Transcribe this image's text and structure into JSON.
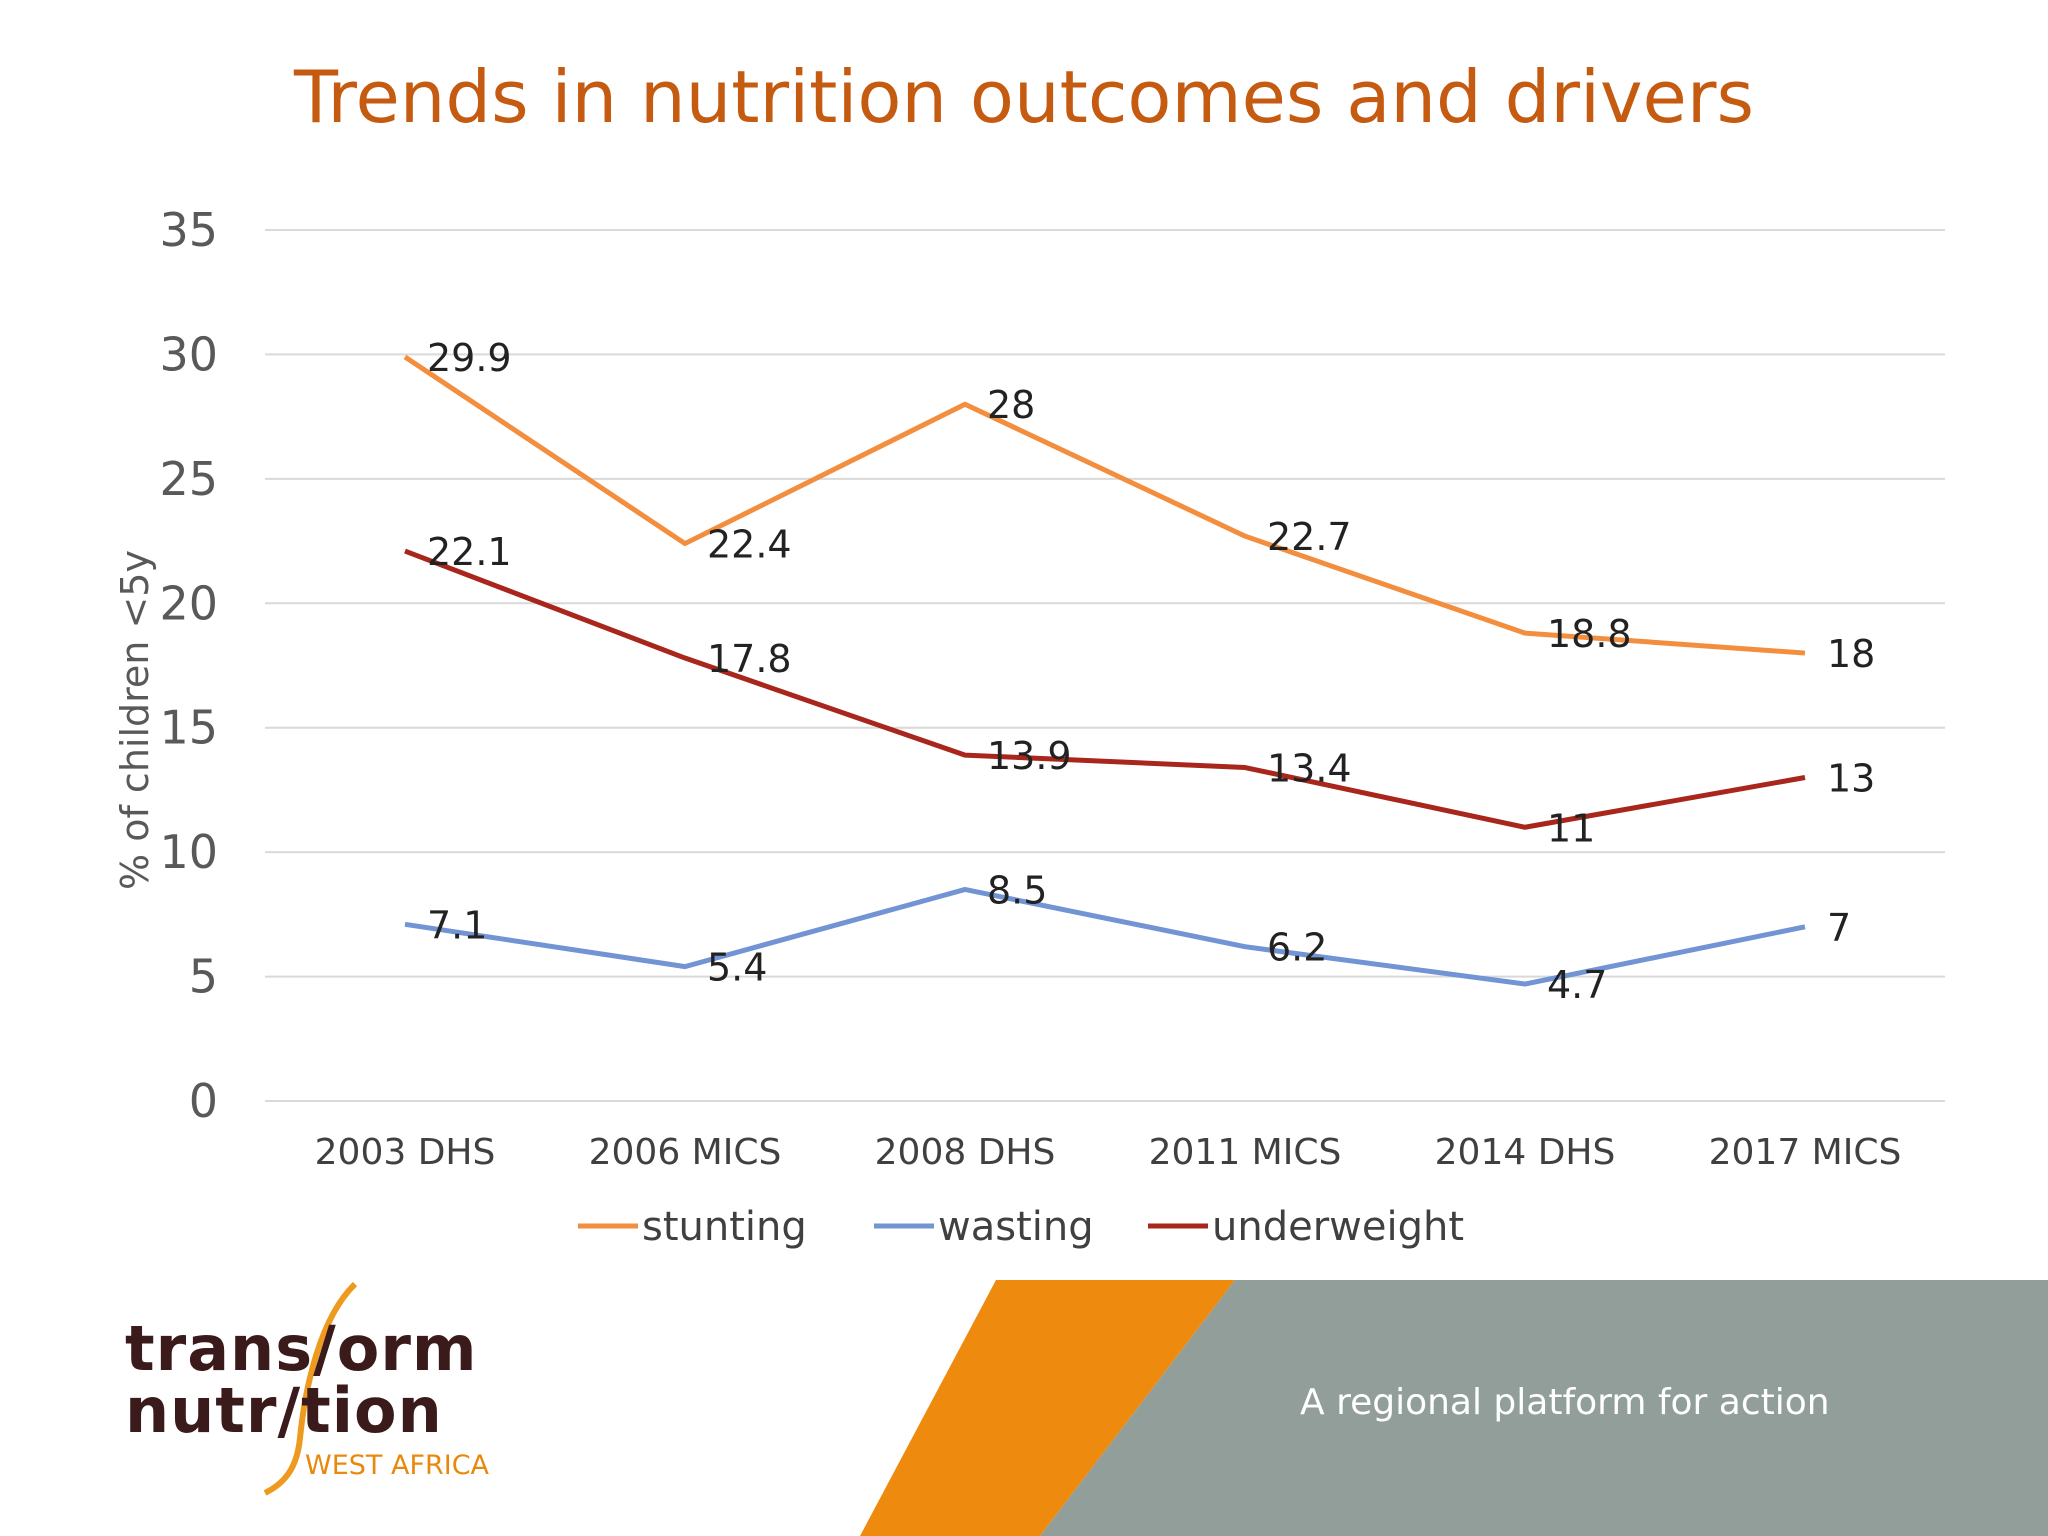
{
  "title": "Trends in nutrition outcomes and drivers",
  "chart_data": {
    "type": "line",
    "ylabel": "% of children <5y",
    "xlabel": "",
    "ylim": [
      0,
      35
    ],
    "yticks": [
      0,
      5,
      10,
      15,
      20,
      25,
      30,
      35
    ],
    "categories": [
      "2003 DHS",
      "2006 MICS",
      "2008 DHS",
      "2011 MICS",
      "2014 DHS",
      "2017 MICS"
    ],
    "data_labels": [
      "29.9",
      "22.4",
      "28",
      "22.7",
      "18.8",
      "18",
      "7.1",
      "5.4",
      "8.5",
      "6.2",
      "4.7",
      "7",
      "22.1",
      "17.8",
      "13.9",
      "13.4",
      "11",
      "13"
    ],
    "series": [
      {
        "name": "stunting",
        "color": "#F28E3E",
        "values": [
          29.9,
          22.4,
          28,
          22.7,
          18.8,
          18
        ]
      },
      {
        "name": "wasting",
        "color": "#7294D4",
        "values": [
          7.1,
          5.4,
          8.5,
          6.2,
          4.7,
          7
        ]
      },
      {
        "name": "underweight",
        "color": "#A8261B",
        "values": [
          22.1,
          17.8,
          13.9,
          13.4,
          11,
          13
        ]
      }
    ],
    "grid": true,
    "legend_position": "bottom"
  },
  "footer": {
    "tagline": "A regional platform for action",
    "logo_line1": "trans/orm",
    "logo_line2": "nutr/tion",
    "logo_sub": "WEST AFRICA",
    "band_colors": {
      "orange": "#EE8A0E",
      "grey": "#919E9A"
    }
  }
}
